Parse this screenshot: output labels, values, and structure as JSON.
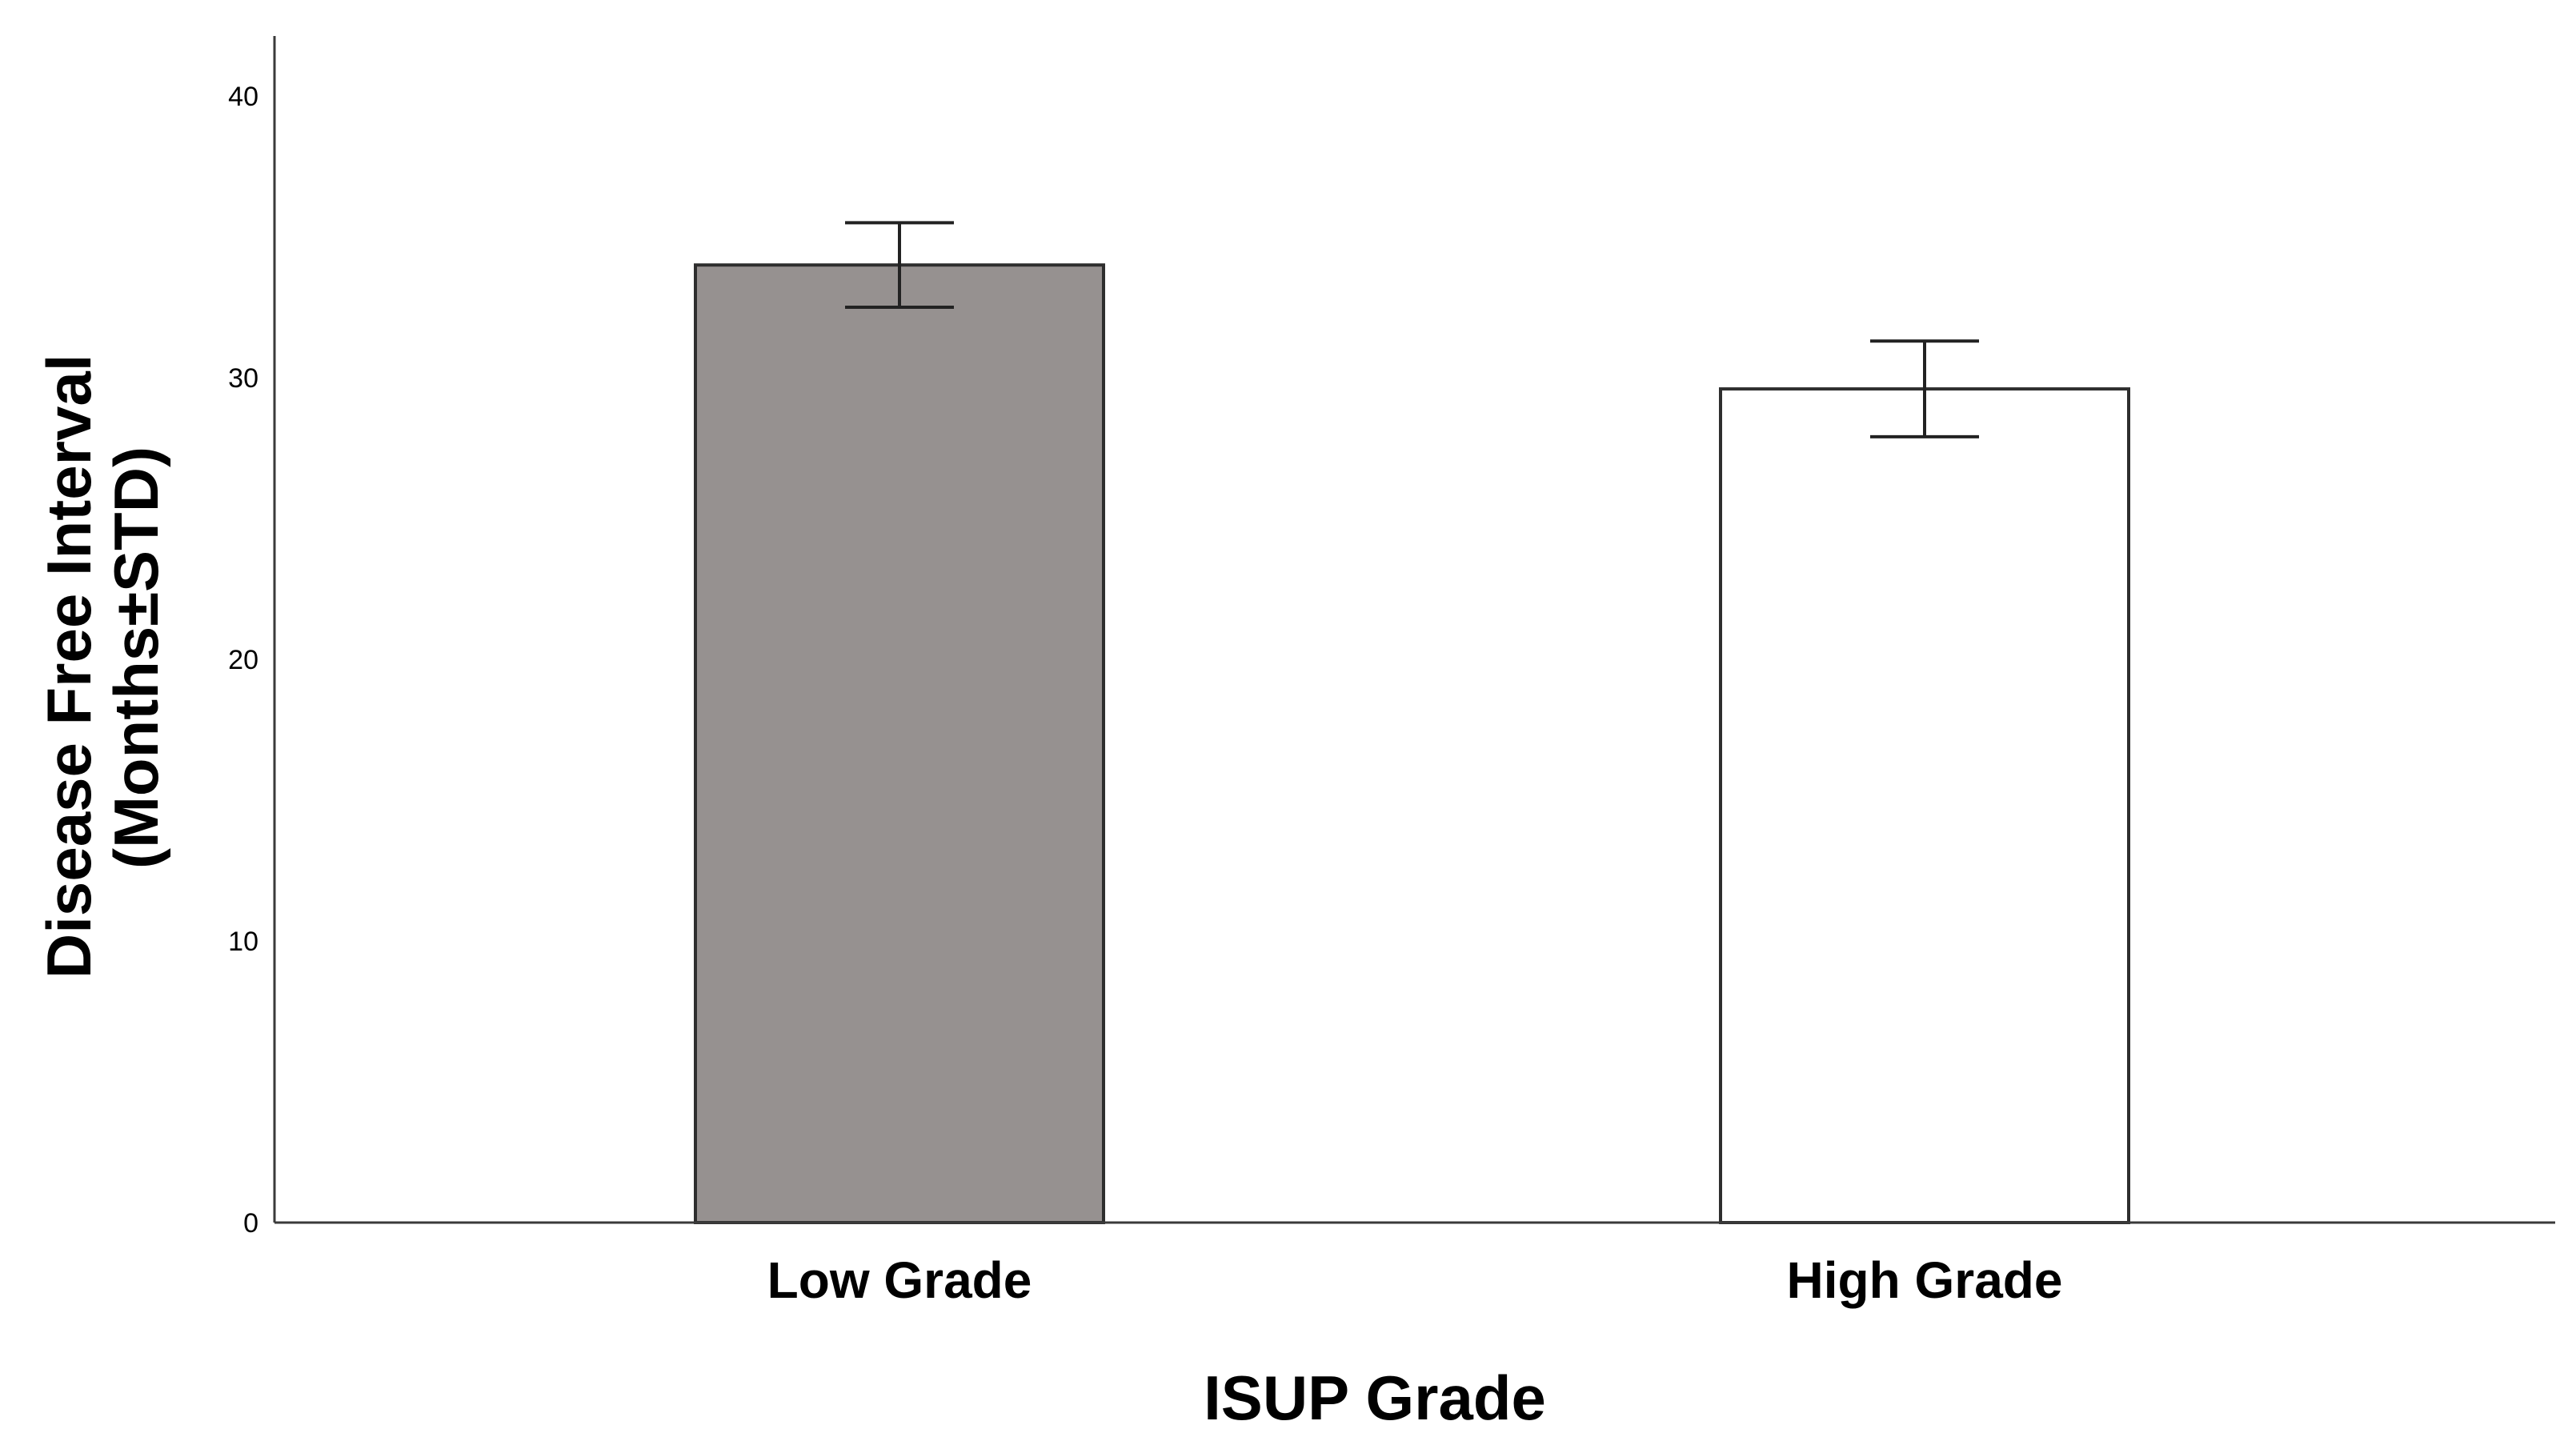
{
  "chart_data": {
    "type": "bar",
    "categories": [
      "Low Grade",
      "High Grade"
    ],
    "values": [
      34.0,
      29.6
    ],
    "error": [
      1.5,
      1.7
    ],
    "colors": [
      "#969190",
      "#ffffff"
    ],
    "xlabel": "ISUP Grade",
    "ylabel_line1": "Disease Free Interval",
    "ylabel_line2": "(Months±STD)",
    "ylim": [
      0,
      42
    ],
    "yticks": [
      0,
      10,
      20,
      30,
      40
    ],
    "ytick_labels": [
      "0",
      "10",
      "20",
      "30",
      "40"
    ],
    "grid": false
  }
}
